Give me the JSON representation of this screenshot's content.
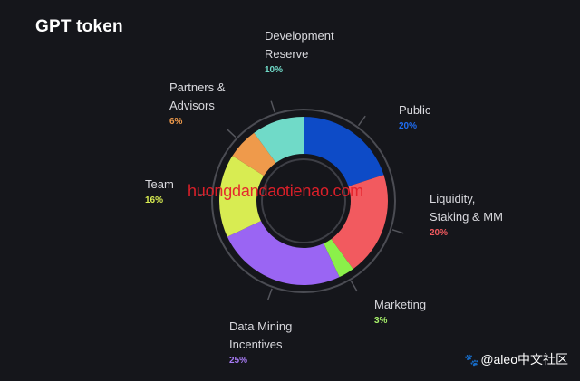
{
  "title": "GPT token",
  "watermark": "huongdandaotienao.com",
  "credit": {
    "icon": "paw-icon",
    "text": "@aleo中文社区"
  },
  "chart_data": {
    "type": "pie",
    "variant": "donut",
    "title": "GPT token",
    "slices": [
      {
        "label": "Public",
        "value": 20,
        "value_label": "20%",
        "color": "#0d4bc7"
      },
      {
        "label": "Liquidity,\nStaking & MM",
        "value": 20,
        "value_label": "20%",
        "color": "#f25a5f"
      },
      {
        "label": "Marketing",
        "value": 3,
        "value_label": "3%",
        "color": "#8bf04a"
      },
      {
        "label": "Data Mining\nIncentives",
        "value": 25,
        "value_label": "25%",
        "color": "#9a65f3"
      },
      {
        "label": "Team",
        "value": 16,
        "value_label": "16%",
        "color": "#d8ec52"
      },
      {
        "label": "Partners &\nAdvisors",
        "value": 6,
        "value_label": "6%",
        "color": "#ef9a4b"
      },
      {
        "label": "Development\nReserve",
        "value": 10,
        "value_label": "10%",
        "color": "#70dac8"
      }
    ]
  }
}
